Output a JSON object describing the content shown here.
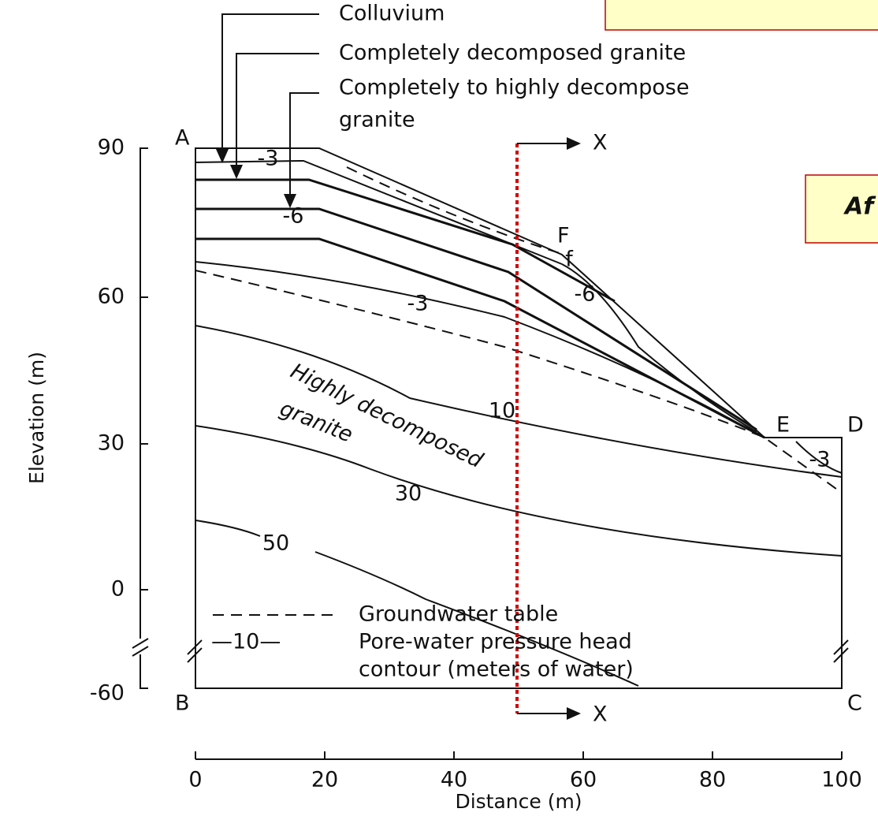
{
  "callouts": {
    "colluvium": "Colluvium",
    "completely_decomposed": "Completely decomposed granite",
    "completely_to_highly": [
      "Completely to highly decompose",
      "granite"
    ]
  },
  "points": [
    "A",
    "B",
    "C",
    "D",
    "E",
    "F"
  ],
  "section": [
    "X",
    "X"
  ],
  "axes": {
    "y_label": "Elevation (m)",
    "y_ticks": [
      "90",
      "60",
      "30",
      "0",
      "-60"
    ],
    "x_label": "Distance (m)",
    "x_ticks": [
      "0",
      "20",
      "40",
      "60",
      "80",
      "100"
    ]
  },
  "contours": [
    "-3",
    "-6",
    "-3",
    "-6",
    "10",
    "30",
    "50",
    "-3"
  ],
  "zone_label": [
    "Highly decomposed",
    "granite"
  ],
  "marker": "f",
  "legend": {
    "groundwater": "Groundwater table",
    "contour_symbol": "—10—",
    "contour_text": [
      "Pore-water pressure head",
      "contour (meters of water)"
    ]
  },
  "callout_box": "Af"
}
